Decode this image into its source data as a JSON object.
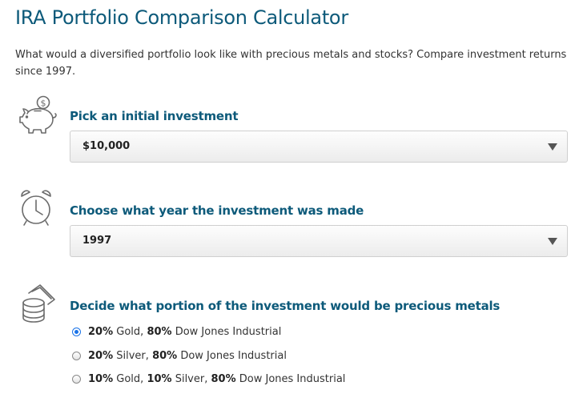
{
  "page": {
    "title": "IRA Portfolio Comparison Calculator",
    "intro": "What would a diversified portfolio look like with precious metals and stocks? Compare investment returns since 1997."
  },
  "steps": {
    "investment": {
      "icon": "piggy-bank-icon",
      "label": "Pick an initial investment",
      "value": "$10,000"
    },
    "year": {
      "icon": "alarm-clock-icon",
      "label": "Choose what year the investment was made",
      "value": "1997"
    },
    "portion": {
      "icon": "coin-stack-icon",
      "label": "Decide what portion of the investment would be precious metals",
      "options": [
        {
          "pct1": "20%",
          "metal1": "Gold,",
          "pct2": "80%",
          "rest": "Dow Jones Industrial",
          "checked": true
        },
        {
          "pct1": "20%",
          "metal1": "Silver,",
          "pct2": "80%",
          "rest": "Dow Jones Industrial",
          "checked": false
        },
        {
          "pct1": "10%",
          "metal1": "Gold,",
          "pct2": "10%",
          "metal2": "Silver,",
          "pct3": "80%",
          "rest": "Dow Jones Industrial",
          "checked": false
        }
      ]
    }
  },
  "colors": {
    "accent": "#0d5a7a",
    "icon_stroke": "#6b6b6b",
    "radio_checked": "#1a73e8"
  }
}
